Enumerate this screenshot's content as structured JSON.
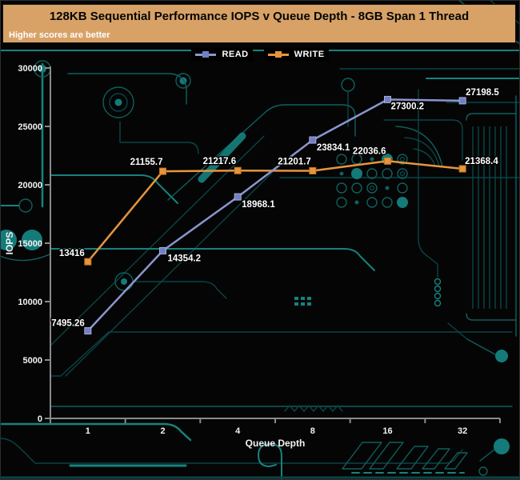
{
  "header": {
    "title": "128KB Sequential Performance IOPS v Queue Depth - 8GB Span 1 Thread",
    "subtitle": "Higher scores are better",
    "bar_color": "#d8a267"
  },
  "legend": {
    "position": "top",
    "items": [
      {
        "label": "READ",
        "line_color": "#8b95cd",
        "marker_color": "#7080c2"
      },
      {
        "label": "WRITE",
        "line_color": "#e6953f",
        "marker_color": "#e6953f"
      }
    ]
  },
  "chart_data": {
    "type": "line",
    "x": [
      1,
      2,
      4,
      8,
      16,
      32
    ],
    "x_labels": [
      "1",
      "2",
      "4",
      "8",
      "16",
      "32"
    ],
    "xlabel": "Queue Depth",
    "ylabel": "IOPS",
    "ylim": [
      0,
      30000
    ],
    "yticks": [
      0,
      5000,
      10000,
      15000,
      20000,
      25000,
      30000
    ],
    "ytick_labels": [
      "0",
      "5000",
      "10000",
      "15000",
      "20000",
      "25000",
      "30000"
    ],
    "grid": false,
    "legend_position": "top",
    "series": [
      {
        "name": "READ",
        "color": "#8b95cd",
        "marker_color": "#7080c2",
        "marker_edge": "#a7b0dc",
        "values": [
          7495.26,
          14354.2,
          18968.1,
          23834.1,
          27300.2,
          27198.5
        ],
        "point_labels": [
          "7495.26",
          "14354.2",
          "18968.1",
          "23834.1",
          "27300.2",
          "27198.5"
        ],
        "label_pos": [
          [
            "end",
            -4,
            -6
          ],
          [
            "start",
            6,
            13
          ],
          [
            "start",
            5,
            13
          ],
          [
            "start",
            5,
            13
          ],
          [
            "start",
            4,
            12
          ],
          [
            "start",
            4,
            -7
          ]
        ]
      },
      {
        "name": "WRITE",
        "color": "#e6953f",
        "marker_color": "#e6953f",
        "marker_edge": "#c2761f",
        "values": [
          13416,
          21155.7,
          21217.6,
          21201.7,
          22036.6,
          21368.4
        ],
        "point_labels": [
          "13416",
          "21155.7",
          "21217.6",
          "21201.7",
          "22036.6",
          "21368.4"
        ],
        "label_pos": [
          [
            "end",
            -4,
            -7
          ],
          [
            "end",
            0,
            -8
          ],
          [
            "end",
            -2,
            -8
          ],
          [
            "end",
            -2,
            -8
          ],
          [
            "end",
            -2,
            -9
          ],
          [
            "start",
            3,
            -6
          ]
        ]
      }
    ]
  },
  "colors": {
    "background": "#050505",
    "axis": "#8a8a8a",
    "circuit_bright": "#16827f",
    "circuit_dim": "#0a4546"
  }
}
